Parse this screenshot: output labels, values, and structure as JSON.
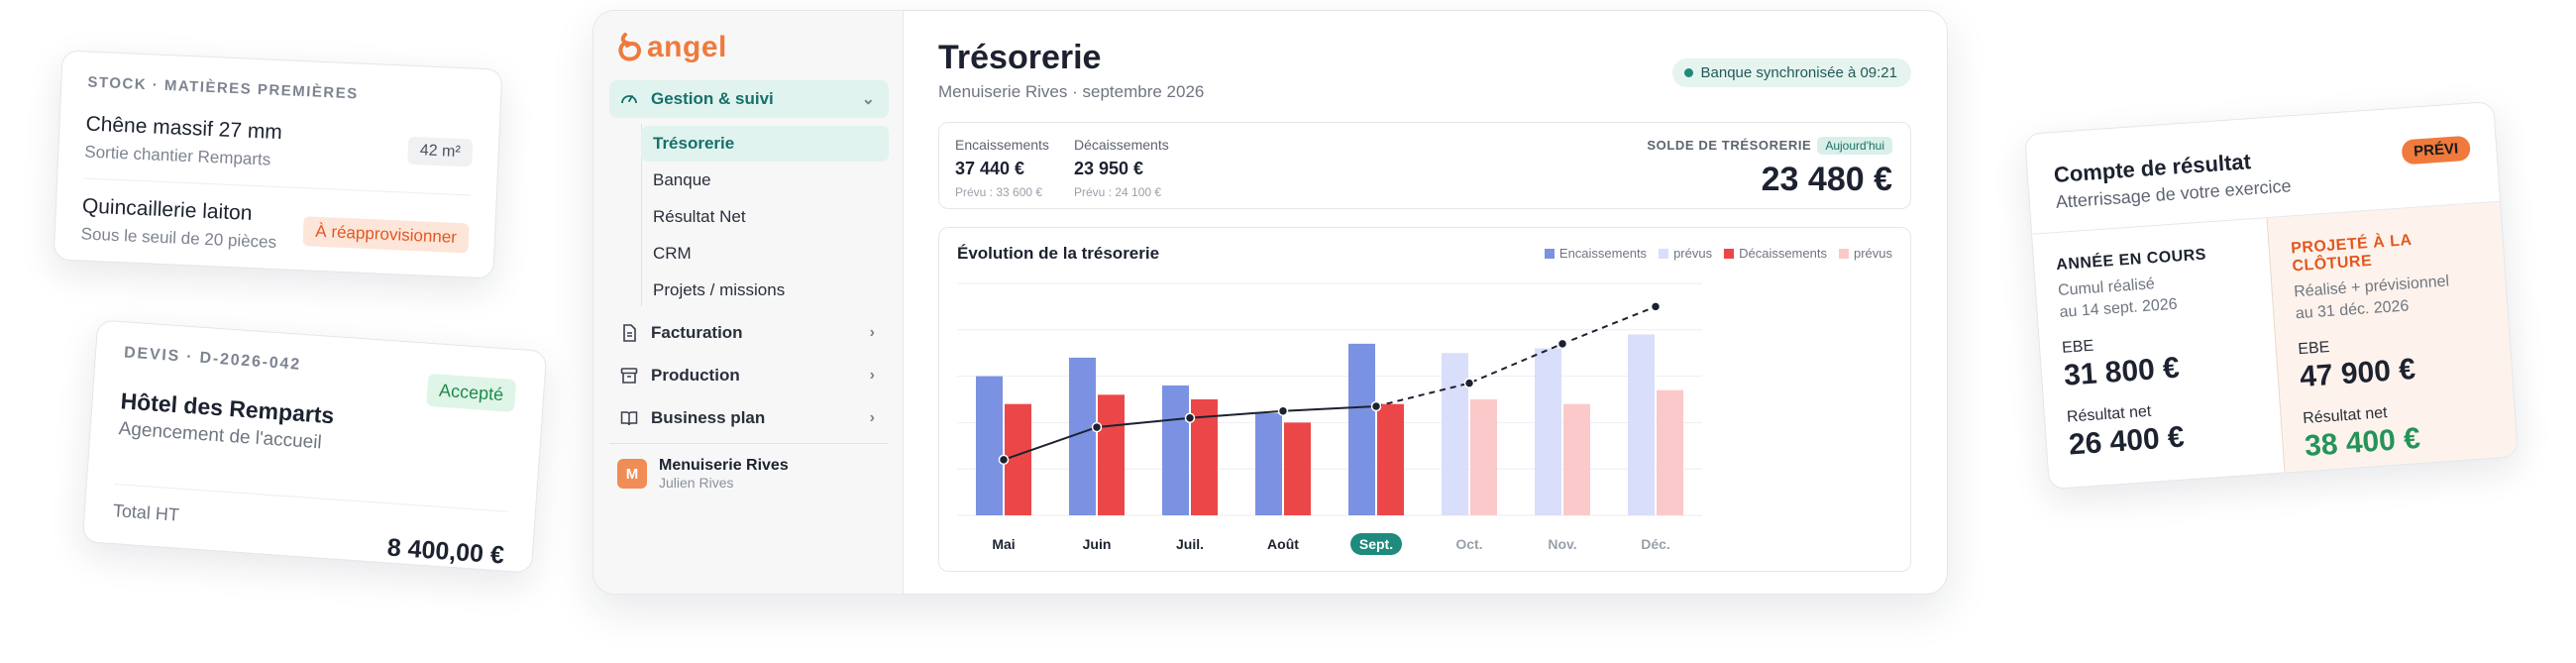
{
  "stock_card": {
    "title": "STOCK · MATIÈRES PREMIÈRES",
    "items": [
      {
        "name": "Chêne massif 27 mm",
        "sub": "Sortie chantier Remparts",
        "badge": "42 m²"
      },
      {
        "name": "Quincaillerie laiton",
        "sub": "Sous le seuil de 20 pièces",
        "badge": "À réapprovisionner"
      }
    ]
  },
  "devis_card": {
    "title": "DEVIS · D-2026-042",
    "status": "Accepté",
    "client": "Hôtel des Remparts",
    "subject": "Agencement de l'accueil",
    "total_label": "Total HT",
    "total_value": "8 400,00 €"
  },
  "sidebar": {
    "logo": "angel",
    "groups": [
      {
        "label": "Gestion & suivi",
        "icon": "gauge-icon",
        "expanded": true
      },
      {
        "label": "Facturation",
        "icon": "document-icon"
      },
      {
        "label": "Production",
        "icon": "archive-icon"
      },
      {
        "label": "Business plan",
        "icon": "book-icon"
      }
    ],
    "sub_items": [
      "Trésorerie",
      "Banque",
      "Résultat Net",
      "CRM",
      "Projets / missions"
    ],
    "active_sub": "Trésorerie",
    "company": {
      "initial": "M",
      "name": "Menuiserie Rives",
      "user": "Julien Rives"
    }
  },
  "main": {
    "title": "Trésorerie",
    "subtitle": "Menuiserie Rives · septembre 2026",
    "sync_status": "Banque synchronisée à 09:21",
    "kpis": [
      {
        "label": "Encaissements",
        "value": "37 440 €",
        "forecast": "Prévu : 33 600 €"
      },
      {
        "label": "Décaissements",
        "value": "23 950 €",
        "forecast": "Prévu : 24 100 €"
      }
    ],
    "solde": {
      "label": "SOLDE DE TRÉSORERIE",
      "tag": "Aujourd'hui",
      "value": "23 480 €"
    }
  },
  "chart_data": {
    "type": "bar",
    "title": "Évolution de la trésorerie",
    "categories": [
      "Mai",
      "Juin",
      "Juil.",
      "Août",
      "Sept.",
      "Oct.",
      "Nov.",
      "Déc."
    ],
    "highlighted_category": "Sept.",
    "forecast_from_index": 5,
    "legend": [
      "Encaissements",
      "prévus",
      "Décaissements",
      "prévus"
    ],
    "colors": {
      "encaissements": "#7b92e3",
      "encaissements_prevus": "#d9defa",
      "decaissements": "#ec4748",
      "decaissements_prevus": "#fbc9c9",
      "line": "#1d2230",
      "highlight": "#1f8a7e"
    },
    "series": [
      {
        "name": "Encaissements",
        "values": [
          30,
          34,
          28,
          22,
          37,
          35,
          36,
          39
        ]
      },
      {
        "name": "Décaissements",
        "values": [
          24,
          26,
          25,
          20,
          24,
          25,
          24,
          27
        ]
      }
    ],
    "line_values": [
      12,
      19,
      21,
      22.5,
      23.5,
      28.5,
      37,
      45
    ],
    "ylim": [
      0,
      50
    ]
  },
  "compte_card": {
    "title": "Compte de résultat",
    "subtitle": "Atterrissage de votre exercice",
    "badge": "PRÉVI",
    "left": {
      "heading": "ANNÉE EN COURS",
      "desc1": "Cumul réalisé",
      "desc2": "au 14 sept. 2026",
      "ebe_label": "EBE",
      "ebe": "31 800 €",
      "net_label": "Résultat net",
      "net": "26 400 €"
    },
    "right": {
      "heading": "PROJETÉ À LA CLÔTURE",
      "desc1": "Réalisé + prévisionnel",
      "desc2": "au 31 déc. 2026",
      "ebe_label": "EBE",
      "ebe": "47 900 €",
      "net_label": "Résultat net",
      "net": "38 400 €"
    }
  }
}
